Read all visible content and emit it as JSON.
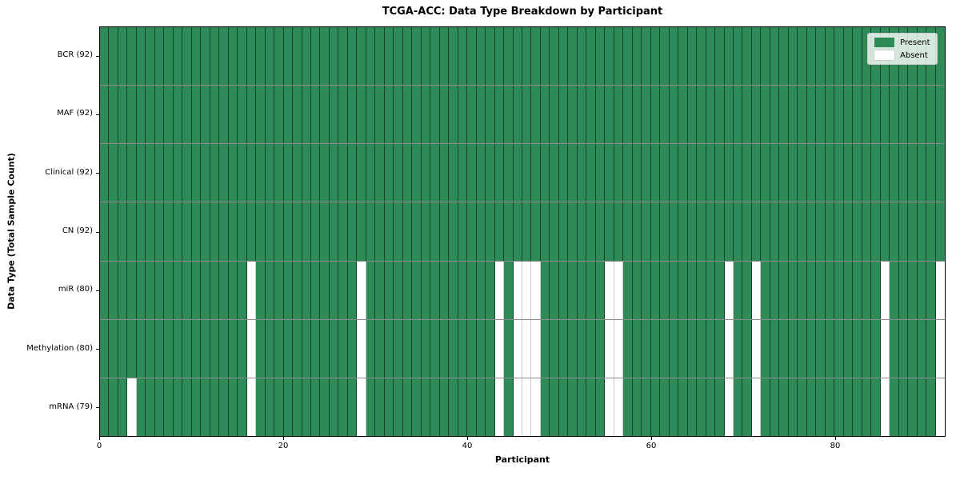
{
  "chart_data": {
    "type": "heatmap",
    "title": "TCGA-ACC: Data Type Breakdown by Participant",
    "xlabel": "Participant",
    "ylabel": "Data Type (Total Sample Count)",
    "x_ticks": [
      0,
      20,
      40,
      60,
      80
    ],
    "x_range": [
      0,
      92
    ],
    "n_participants": 92,
    "grid_on": true,
    "legend_position": "upper right",
    "colors": {
      "present": "#2e8b57",
      "absent": "#ffffff",
      "grid_line": "rgba(0,0,0,0.5)",
      "frame": "#000000"
    },
    "legend": [
      {
        "label": "Present",
        "color": "#2e8b57"
      },
      {
        "label": "Absent",
        "color": "#ffffff"
      }
    ],
    "rows": [
      {
        "label": "BCR (92)",
        "data_type": "BCR",
        "total": 92,
        "absent_participants": []
      },
      {
        "label": "MAF (92)",
        "data_type": "MAF",
        "total": 92,
        "absent_participants": []
      },
      {
        "label": "Clinical (92)",
        "data_type": "Clinical",
        "total": 92,
        "absent_participants": []
      },
      {
        "label": "CN (92)",
        "data_type": "CN",
        "total": 92,
        "absent_participants": []
      },
      {
        "label": "miR (80)",
        "data_type": "miR",
        "total": 80,
        "absent_participants": [
          16,
          28,
          43,
          45,
          46,
          47,
          55,
          56,
          68,
          71,
          85,
          91
        ]
      },
      {
        "label": "Methylation (80)",
        "data_type": "Methylation",
        "total": 80,
        "absent_participants": [
          16,
          28,
          43,
          45,
          46,
          47,
          55,
          56,
          68,
          71,
          85,
          91
        ]
      },
      {
        "label": "mRNA (79)",
        "data_type": "mRNA",
        "total": 79,
        "absent_participants": [
          3,
          16,
          28,
          43,
          45,
          46,
          47,
          55,
          56,
          68,
          71,
          85,
          91
        ]
      }
    ]
  }
}
